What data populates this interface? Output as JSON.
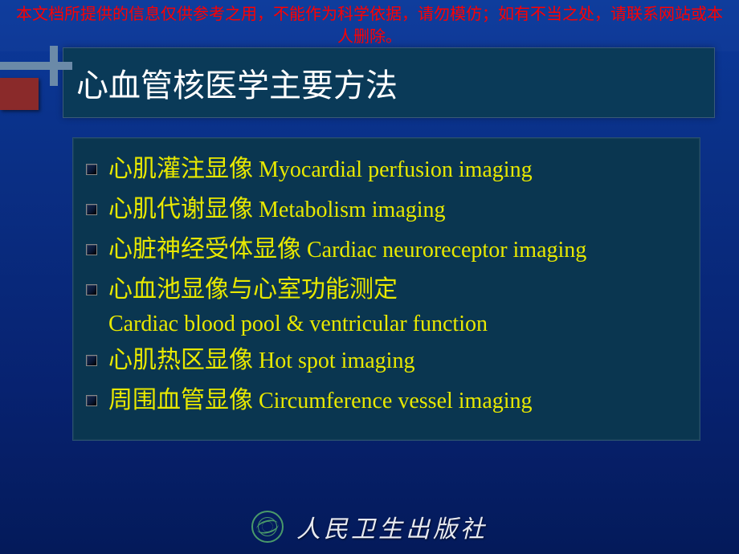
{
  "colors": {
    "background_top": "#0b3a9c",
    "background_bottom": "#041a5a",
    "disclaimer_text": "#ff0000",
    "title_bg": "#0a3a58",
    "title_text": "#ffffff",
    "content_bg": "#0a3650",
    "content_text": "#e8e800",
    "decoration_bar": "#6b8aa8",
    "decoration_box": "#8a2a2a",
    "footer_text": "#e8eaf0",
    "footer_logo": "#4a9a6a"
  },
  "disclaimer": "本文档所提供的信息仅供参考之用，不能作为科学依据，请勿模仿；如有不当之处，请联系网站或本人删除。",
  "title": "心血管核医学主要方法",
  "items": [
    {
      "cn": "心肌灌注显像",
      "en": " Myocardial perfusion imaging"
    },
    {
      "cn": "心肌代谢显像",
      "en": " Metabolism imaging"
    },
    {
      "cn": "心脏神经受体显像",
      "en": " Cardiac neuroreceptor imaging"
    },
    {
      "cn": "心血池显像与心室功能测定",
      "en": "",
      "sub": "Cardiac blood pool & ventricular function"
    },
    {
      "cn": "心肌热区显像",
      "en": " Hot spot imaging"
    },
    {
      "cn": "周围血管显像",
      "en": " Circumference vessel imaging"
    }
  ],
  "footer": {
    "publisher": "人民卫生出版社"
  },
  "typography": {
    "disclaimer_fontsize": 20,
    "title_fontsize": 40,
    "item_cn_fontsize": 30,
    "item_en_fontsize": 28,
    "footer_fontsize": 30
  }
}
